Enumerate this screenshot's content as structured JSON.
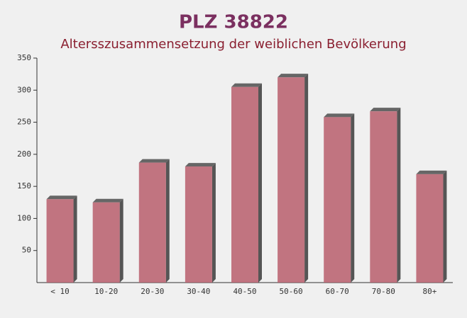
{
  "chart_data": {
    "type": "bar",
    "title": "PLZ 38822",
    "subtitle": "Altersszusammensetzung der weiblichen Bevölkerung",
    "categories": [
      "< 10",
      "10-20",
      "20-30",
      "30-40",
      "40-50",
      "50-60",
      "60-70",
      "70-80",
      "80+"
    ],
    "values": [
      130,
      125,
      187,
      181,
      305,
      320,
      258,
      267,
      169
    ],
    "color": "#b85e6c",
    "ylim": [
      0,
      350
    ],
    "yticks": [
      50,
      100,
      150,
      200,
      250,
      300,
      350
    ]
  }
}
